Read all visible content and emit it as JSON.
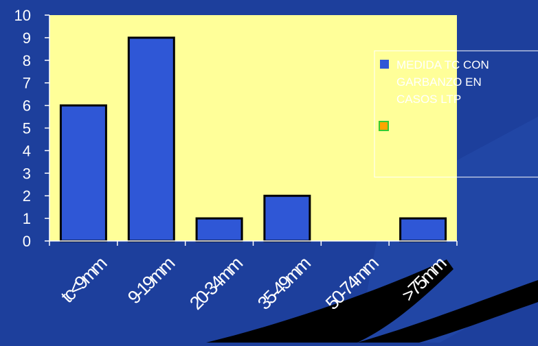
{
  "colors": {
    "background": "#1d3f9c",
    "plot_area": "#ffff99",
    "bar_fill": "#2f57d6",
    "bar_stroke": "#000000",
    "text": "#ffffff",
    "swatch2_fill": "#ffa500",
    "swatch2_stroke": "#33cc33",
    "slash": "#000000"
  },
  "chart_data": {
    "type": "bar",
    "categories": [
      "tc<9mm",
      "9-19mm",
      "20-34mm",
      "35-49mm",
      "50-74mm",
      ">75mm"
    ],
    "series": [
      {
        "name": "MEDIDA TC CON GARBANZO EN CASOS LTP",
        "values": [
          6,
          9,
          1,
          2,
          0,
          1
        ]
      }
    ],
    "y_ticks": [
      "0",
      "1",
      "2",
      "3",
      "4",
      "5",
      "6",
      "7",
      "8",
      "9",
      "10"
    ],
    "ylim": [
      0,
      10
    ],
    "grid": false,
    "legend": {
      "placement": "right",
      "entries": [
        {
          "lines": [
            "MEDIDA TC CON",
            "GARBANZO EN",
            "CASOS LTP"
          ],
          "swatch": "bar_fill"
        },
        {
          "lines": [],
          "swatch": "swatch2_fill"
        }
      ]
    },
    "title": "",
    "xlabel": "",
    "ylabel": ""
  }
}
